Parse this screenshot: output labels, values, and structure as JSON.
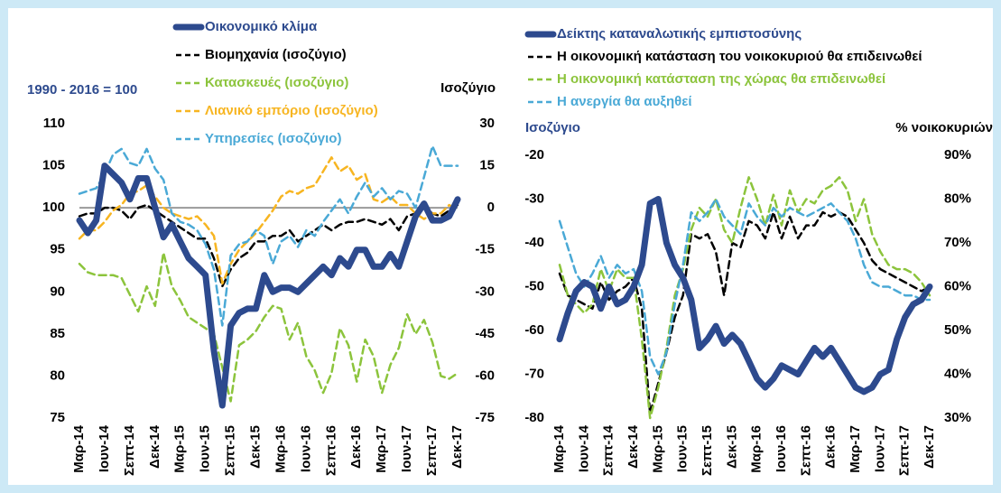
{
  "chart_data": [
    {
      "type": "line",
      "categories": [
        "Μαρ-14",
        null,
        null,
        "Ιουν-14",
        null,
        null,
        "Σεπτ-14",
        null,
        null,
        "Δεκ-14",
        null,
        null,
        "Μαρ-15",
        null,
        null,
        "Ιουν-15",
        null,
        null,
        "Σεπτ-15",
        null,
        null,
        "Δεκ-15",
        null,
        null,
        "Μαρ-16",
        null,
        null,
        "Ιουν-16",
        null,
        null,
        "Σεπτ-16",
        null,
        null,
        "Δεκ-16",
        null,
        null,
        "Μαρ-17",
        null,
        null,
        "Ιουν-17",
        null,
        null,
        "Σεπτ-17",
        null,
        null,
        "Δεκ-17"
      ],
      "y_label": "1990 - 2016 = 100",
      "y2_label": "Ισοζύγιο",
      "ylim": [
        75,
        110
      ],
      "yticks": [
        75,
        80,
        85,
        90,
        95,
        100,
        105,
        110
      ],
      "y2lim": [
        -75,
        30
      ],
      "y2ticks": [
        -75,
        -60,
        -45,
        -30,
        -15,
        0,
        15,
        30
      ],
      "reference_line": 100,
      "series": [
        {
          "name": "Οικονομικό κλίμα",
          "color": "#2d4a8e",
          "values": [
            98.5,
            97,
            98.5,
            105,
            104,
            103,
            101,
            103.5,
            103.5,
            100,
            96.5,
            98,
            96,
            94,
            93,
            92,
            83,
            76.5,
            86,
            87.5,
            88,
            88,
            92,
            90,
            90.5,
            90.5,
            90,
            91,
            92,
            93,
            92,
            94,
            93,
            95,
            95,
            93,
            93,
            94.5,
            93,
            96,
            99,
            100.5,
            98.5,
            98.5,
            99,
            101
          ]
        },
        {
          "name": "Βιομηχανία (ισοζύγιο)",
          "color": "#000000",
          "axis": "y2",
          "values": [
            -3,
            -2,
            -2,
            0,
            0,
            -1,
            -4,
            0,
            1,
            -1,
            -3,
            -5,
            -7,
            -9,
            -11,
            -11,
            -18,
            -28,
            -22,
            -18,
            -16,
            -12,
            -12,
            -10,
            -10,
            -8,
            -12,
            -10,
            -8,
            -6,
            -8,
            -6,
            -5,
            -5,
            -4,
            -5,
            -6,
            -4,
            -8,
            -3,
            -2,
            0,
            -2,
            -3,
            -1,
            1
          ]
        },
        {
          "name": "Κατασκευές (ισοζύγιο)",
          "color": "#8cc43c",
          "axis": "y2",
          "values": [
            -20,
            -23,
            -24,
            -24,
            -24,
            -25,
            -31,
            -37,
            -28,
            -35,
            -16,
            -28,
            -33,
            -39,
            -41,
            -43,
            -45,
            -57,
            -69,
            -49,
            -47,
            -44,
            -39,
            -35,
            -36,
            -47,
            -41,
            -53,
            -58,
            -66,
            -59,
            -43,
            -49,
            -62,
            -47,
            -53,
            -66,
            -56,
            -50,
            -38,
            -45,
            -40,
            -48,
            -60,
            -61,
            -59
          ]
        },
        {
          "name": "Λιανικό εμπόριο (ισοζύγιο)",
          "color": "#f7b521",
          "axis": "y2",
          "values": [
            -11,
            -8,
            -8,
            -5,
            -1,
            1,
            5,
            6,
            8,
            4,
            0,
            -2,
            -3,
            -4,
            -3,
            -6,
            -10,
            -27,
            -20,
            -15,
            -12,
            -9,
            -5,
            -1,
            4,
            6,
            5,
            7,
            8,
            13,
            18,
            13,
            15,
            10,
            12,
            3,
            2,
            4,
            1,
            1,
            -2,
            -4,
            -2,
            -2,
            1,
            -1
          ]
        },
        {
          "name": "Υπηρεσίες (ισοζύγιο)",
          "color": "#4aa9d6",
          "axis": "y2",
          "values": [
            5,
            6,
            7,
            12,
            19,
            21,
            16,
            15,
            21,
            14,
            10,
            -2,
            -5,
            -6,
            -8,
            -13,
            -22,
            -42,
            -17,
            -13,
            -12,
            -8,
            -10,
            -20,
            -12,
            -10,
            -14,
            -8,
            -10,
            -5,
            -1,
            3,
            -2,
            4,
            9,
            4,
            7,
            3,
            6,
            5,
            0,
            11,
            22,
            15,
            15,
            15
          ]
        }
      ]
    },
    {
      "type": "line",
      "categories": [
        "Μαρ-14",
        null,
        null,
        "Ιουν-14",
        null,
        null,
        "Σεπτ-14",
        null,
        null,
        "Δεκ-14",
        null,
        null,
        "Μαρ-15",
        null,
        null,
        "Ιουν-15",
        null,
        null,
        "Σεπτ-15",
        null,
        null,
        "Δεκ-15",
        null,
        null,
        "Μαρ-16",
        null,
        null,
        "Ιουν-16",
        null,
        null,
        "Σεπτ-16",
        null,
        null,
        "Δεκ-16",
        null,
        null,
        "Μαρ-17",
        null,
        null,
        "Ιουν-17",
        null,
        null,
        "Σεπτ-17",
        null,
        null,
        "Δεκ-17"
      ],
      "y_label": "Ισοζύγιο",
      "y2_label": "% νοικοκυριών",
      "ylim": [
        -80,
        -20
      ],
      "yticks": [
        -80,
        -70,
        -60,
        -50,
        -40,
        -30,
        -20
      ],
      "y2lim": [
        30,
        90
      ],
      "y2ticks": [
        {
          "value": 30,
          "label": "30%"
        },
        {
          "value": 40,
          "label": "40%"
        },
        {
          "value": 50,
          "label": "50%"
        },
        {
          "value": 60,
          "label": "60%"
        },
        {
          "value": 70,
          "label": "70%"
        },
        {
          "value": 80,
          "label": "80%"
        },
        {
          "value": 90,
          "label": "90%"
        }
      ],
      "series": [
        {
          "name": "Δείκτης καταναλωτικής εμπιστοσύνης",
          "color": "#2d4a8e",
          "values": [
            -62,
            -56,
            -51,
            -49,
            -50,
            -55,
            -50,
            -54,
            -53,
            -50,
            -45,
            -31,
            -30,
            -40,
            -45,
            -48,
            -53,
            -64,
            -62,
            -59,
            -63,
            -61,
            -63,
            -67,
            -71,
            -73,
            -71,
            -68,
            -69,
            -70,
            -67,
            -64,
            -66,
            -64,
            -67,
            -70,
            -73,
            -74,
            -73,
            -70,
            -69,
            -62,
            -57,
            -54,
            -53,
            -50
          ]
        },
        {
          "name": "Η οικονομική κατάσταση του νοικοκυριού θα επιδεινωθεί",
          "color": "#000000",
          "axis": "y2",
          "values": [
            63,
            58,
            57,
            56,
            55,
            61,
            57,
            59,
            60,
            62,
            55,
            31,
            38,
            45,
            53,
            58,
            72,
            71,
            72,
            68,
            58,
            70,
            69,
            75,
            74,
            71,
            77,
            71,
            76,
            71,
            74,
            74,
            77,
            76,
            77,
            76,
            73,
            70,
            66,
            64,
            63,
            62,
            61,
            60,
            59,
            60
          ]
        },
        {
          "name": "Η οικονομική κατάσταση της χώρας θα επιδεινωθεί",
          "color": "#8cc43c",
          "axis": "y2",
          "values": [
            65,
            58,
            56,
            54,
            56,
            64,
            59,
            64,
            62,
            62,
            48,
            30,
            37,
            46,
            58,
            64,
            73,
            78,
            76,
            80,
            73,
            70,
            78,
            85,
            80,
            74,
            81,
            74,
            82,
            77,
            80,
            79,
            82,
            83,
            85,
            82,
            75,
            80,
            72,
            68,
            65,
            64,
            64,
            63,
            61,
            58
          ]
        },
        {
          "name": "Η ανεργία θα αυξηθεί",
          "color": "#4aa9d6",
          "axis": "y2",
          "values": [
            75,
            69,
            63,
            60,
            63,
            67,
            62,
            65,
            63,
            64,
            59,
            44,
            40,
            45,
            56,
            65,
            77,
            75,
            77,
            80,
            76,
            74,
            72,
            79,
            76,
            74,
            78,
            76,
            78,
            77,
            76,
            77,
            78,
            79,
            77,
            75,
            71,
            65,
            61,
            60,
            60,
            59,
            58,
            58,
            57,
            57
          ]
        }
      ]
    }
  ]
}
